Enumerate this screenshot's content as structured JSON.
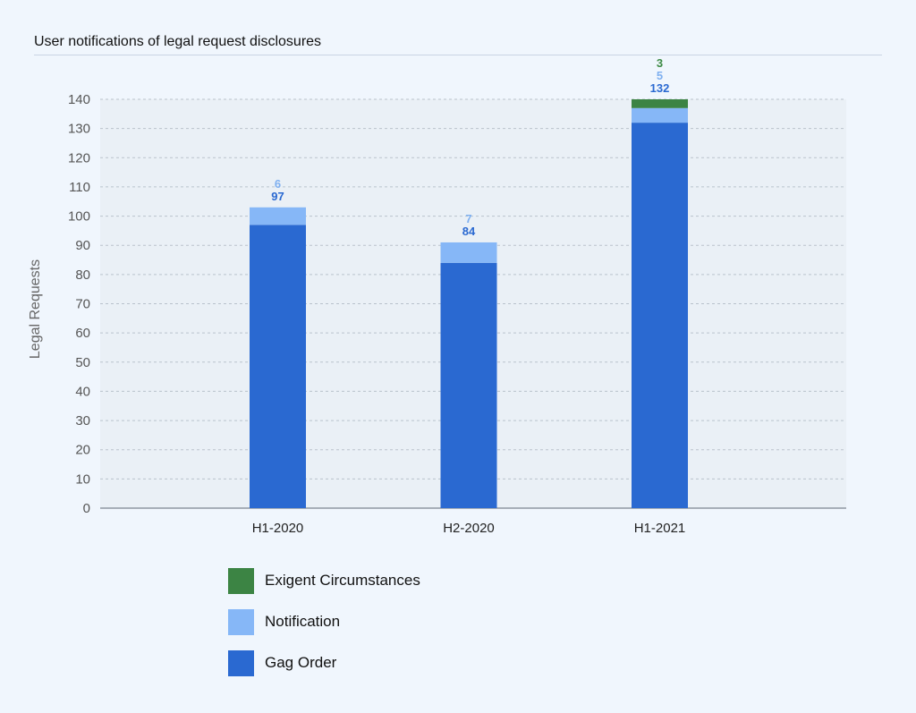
{
  "chart_data": {
    "type": "bar",
    "stacked": true,
    "title": "User notifications of legal request disclosures",
    "xlabel": "",
    "ylabel": "Legal Requests",
    "ylim": [
      0,
      140
    ],
    "yticks": [
      0,
      10,
      20,
      30,
      40,
      50,
      60,
      70,
      80,
      90,
      100,
      110,
      120,
      130,
      140
    ],
    "grid": true,
    "legend_position": "bottom",
    "categories": [
      "H1-2020",
      "H2-2020",
      "H1-2021"
    ],
    "series": [
      {
        "name": "Gag Order",
        "color": "#2a69d1",
        "label_color": "#2a69d1",
        "values": [
          97,
          84,
          132
        ]
      },
      {
        "name": "Notification",
        "color": "#86b7f7",
        "label_color": "#7fb0f0",
        "values": [
          6,
          7,
          5
        ]
      },
      {
        "name": "Exigent Circumstances",
        "color": "#3c8444",
        "label_color": "#3c8a44",
        "values": [
          null,
          null,
          3
        ]
      }
    ],
    "legend_order": [
      "Exigent Circumstances",
      "Notification",
      "Gag Order"
    ]
  }
}
